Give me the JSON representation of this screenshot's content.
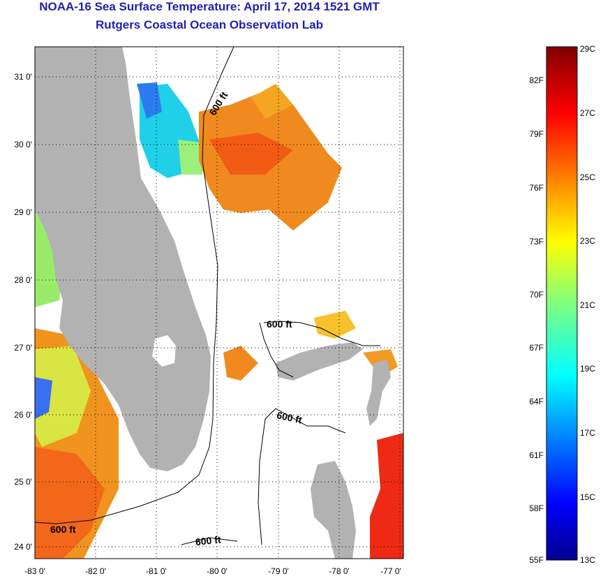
{
  "title": "NOAA-16 Sea Surface Temperature:  April 17, 2014 1521 GMT",
  "subtitle": "Rutgers Coastal Ocean Observation Lab",
  "map": {
    "lat_ticks": [
      "31 0'",
      "30 0'",
      "29 0'",
      "28 0'",
      "27 0'",
      "26 0'",
      "25 0'",
      "24 0'"
    ],
    "lon_ticks": [
      "-83 0'",
      "-82 0'",
      "-81 0'",
      "-80 0'",
      "-79 0'",
      "-78 0'",
      "-77 0'"
    ],
    "contour_labels": [
      "600 ft",
      "600 ft",
      "600 ft",
      "600 ft",
      "600 ft"
    ],
    "colors": {
      "land": "#b2b2b2",
      "ocean": "#ffffff",
      "grid": "#000000"
    }
  },
  "colorbar": {
    "fahrenheit_labels": [
      "82F",
      "79F",
      "76F",
      "73F",
      "70F",
      "67F",
      "64F",
      "61F",
      "58F",
      "55F"
    ],
    "celsius_labels": [
      "29C",
      "27C",
      "25C",
      "23C",
      "21C",
      "19C",
      "17C",
      "15C",
      "13C"
    ],
    "range_c": [
      13,
      29
    ],
    "colormap": "jet"
  }
}
